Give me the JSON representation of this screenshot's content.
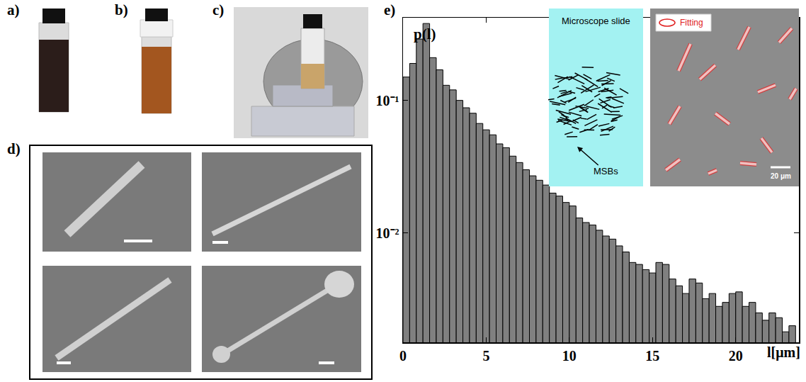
{
  "chart_data": {
    "type": "histogram",
    "panel_labels": [
      "a)",
      "b)",
      "c)",
      "d)",
      "e)"
    ],
    "ylabel": "p(l)",
    "xlabel": "l[μm]",
    "annotations": [
      "Microscope slide",
      "MSBs",
      "Fitting",
      "20 μm"
    ],
    "bins": [
      0,
      0.4,
      0.8,
      1.2,
      1.6,
      2,
      2.4,
      2.8,
      3.2,
      3.6,
      4,
      4.4,
      4.8,
      5.2,
      5.6,
      6,
      6.4,
      6.8,
      7.2,
      7.6,
      8,
      8.4,
      8.8,
      9.2,
      9.6,
      10,
      10.4,
      10.8,
      11.2,
      11.6,
      12,
      12.4,
      12.8,
      13.2,
      13.6,
      14,
      14.4,
      14.8,
      15.2,
      15.6,
      16,
      16.4,
      16.8,
      17.2,
      17.6,
      18,
      18.4,
      18.8,
      19.2,
      19.6,
      20,
      20.4,
      20.8,
      21.2,
      21.6,
      22,
      22.4,
      22.8,
      23.2,
      23.6
    ],
    "values": [
      0.15,
      0.19,
      0.29,
      0.38,
      0.21,
      0.17,
      0.13,
      0.12,
      0.1,
      0.088,
      0.08,
      0.067,
      0.06,
      0.055,
      0.047,
      0.044,
      0.038,
      0.034,
      0.03,
      0.027,
      0.025,
      0.023,
      0.02,
      0.019,
      0.017,
      0.016,
      0.013,
      0.012,
      0.0115,
      0.0105,
      0.0095,
      0.009,
      0.008,
      0.0072,
      0.006,
      0.0058,
      0.0053,
      0.005,
      0.006,
      0.0058,
      0.0045,
      0.004,
      0.0035,
      0.0045,
      0.0042,
      0.0032,
      0.0035,
      0.0028,
      0.003,
      0.0035,
      0.0036,
      0.0028,
      0.003,
      0.0025,
      0.0022,
      0.0025,
      0.0023,
      0.0018,
      0.002
    ],
    "color": "#808080",
    "log": "y",
    "xlim": [
      0,
      23.8
    ],
    "xticks": [
      0,
      5,
      10,
      15,
      20
    ],
    "ylim": [
      0.0015,
      0.42
    ],
    "yticks": [
      {
        "value": 0.01,
        "label": "10⁻²"
      },
      {
        "value": 0.1,
        "label": "10⁻¹"
      }
    ],
    "grid": false
  }
}
